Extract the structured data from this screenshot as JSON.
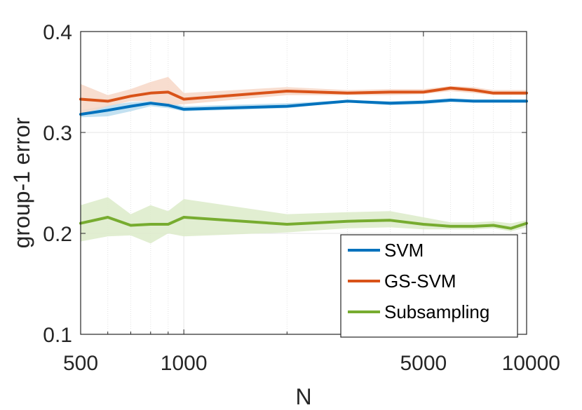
{
  "chart_data": {
    "type": "line",
    "title": "",
    "xlabel": "N",
    "ylabel": "group-1 error",
    "xscale": "log",
    "xlim": [
      500,
      10000
    ],
    "ylim": [
      0.1,
      0.4
    ],
    "x_ticks": [
      500,
      1000,
      5000,
      10000
    ],
    "x_tick_labels": [
      "500",
      "1000",
      "5000",
      "10000"
    ],
    "y_ticks": [
      0.1,
      0.2,
      0.3,
      0.4
    ],
    "y_tick_labels": [
      "0.1",
      "0.2",
      "0.3",
      "0.4"
    ],
    "minor_x_grid": [
      600,
      700,
      800,
      900,
      2000,
      3000,
      4000,
      6000,
      7000,
      8000,
      9000
    ],
    "grid": true,
    "legend_position": "bottom-right",
    "x": [
      500,
      600,
      700,
      800,
      900,
      1000,
      2000,
      3000,
      4000,
      5000,
      6000,
      7000,
      8000,
      9000,
      10000
    ],
    "series": [
      {
        "name": "SVM",
        "color": "#0072BD",
        "band_color": "#b8dcef",
        "values": [
          0.318,
          0.322,
          0.326,
          0.329,
          0.327,
          0.323,
          0.326,
          0.331,
          0.329,
          0.33,
          0.332,
          0.331,
          0.331,
          0.331,
          0.331
        ],
        "lower": [
          0.315,
          0.316,
          0.321,
          0.326,
          0.324,
          0.321,
          0.324,
          0.33,
          0.327,
          0.328,
          0.33,
          0.33,
          0.33,
          0.33,
          0.33
        ],
        "upper": [
          0.322,
          0.327,
          0.33,
          0.331,
          0.33,
          0.326,
          0.329,
          0.332,
          0.331,
          0.332,
          0.334,
          0.333,
          0.333,
          0.333,
          0.333
        ]
      },
      {
        "name": "GS-SVM",
        "color": "#D95319",
        "band_color": "#f7d7c7",
        "values": [
          0.333,
          0.331,
          0.336,
          0.339,
          0.34,
          0.333,
          0.341,
          0.339,
          0.34,
          0.34,
          0.344,
          0.342,
          0.339,
          0.339,
          0.339
        ],
        "lower": [
          0.318,
          0.326,
          0.331,
          0.331,
          0.327,
          0.328,
          0.337,
          0.337,
          0.337,
          0.338,
          0.341,
          0.339,
          0.337,
          0.337,
          0.337
        ],
        "upper": [
          0.348,
          0.337,
          0.343,
          0.35,
          0.355,
          0.339,
          0.345,
          0.342,
          0.343,
          0.343,
          0.346,
          0.345,
          0.342,
          0.342,
          0.342
        ]
      },
      {
        "name": "Subsampling",
        "color": "#77AC30",
        "band_color": "#dcebc9",
        "values": [
          0.21,
          0.216,
          0.208,
          0.209,
          0.209,
          0.216,
          0.209,
          0.212,
          0.213,
          0.209,
          0.207,
          0.207,
          0.208,
          0.205,
          0.21
        ],
        "lower": [
          0.192,
          0.197,
          0.198,
          0.19,
          0.2,
          0.197,
          0.201,
          0.205,
          0.206,
          0.204,
          0.204,
          0.204,
          0.205,
          0.202,
          0.206
        ],
        "upper": [
          0.228,
          0.236,
          0.219,
          0.228,
          0.222,
          0.234,
          0.219,
          0.221,
          0.222,
          0.216,
          0.211,
          0.211,
          0.212,
          0.21,
          0.213
        ]
      }
    ]
  }
}
